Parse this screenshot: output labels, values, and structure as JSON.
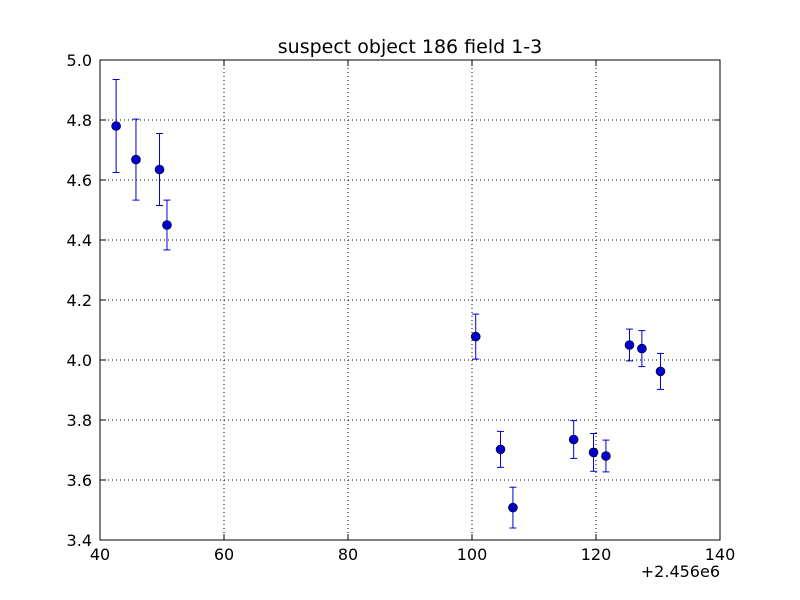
{
  "chart_data": {
    "type": "scatter",
    "title": "suspect object 186 field 1-3",
    "xlabel": "",
    "ylabel": "",
    "x_offset_label": "+2.456e6",
    "xlim": [
      40,
      140
    ],
    "ylim": [
      5.0,
      3.4
    ],
    "y_inverted": true,
    "grid": true,
    "x_ticks": [
      40,
      60,
      80,
      100,
      120,
      140
    ],
    "x_tick_labels": [
      "40",
      "60",
      "80",
      "100",
      "120",
      "140"
    ],
    "y_ticks": [
      3.4,
      3.6,
      3.8,
      4.0,
      4.2,
      4.4,
      4.6,
      4.8,
      5.0
    ],
    "y_tick_labels": [
      "3.4",
      "3.6",
      "3.8",
      "4.0",
      "4.2",
      "4.4",
      "4.6",
      "4.8",
      "5.0"
    ],
    "series": [
      {
        "color": "#0000cc",
        "marker": "circle",
        "error_bars": true,
        "points": [
          {
            "x": 42.6,
            "y": 4.78,
            "err": 0.155
          },
          {
            "x": 45.8,
            "y": 4.668,
            "err": 0.135
          },
          {
            "x": 49.6,
            "y": 4.635,
            "err": 0.12
          },
          {
            "x": 50.8,
            "y": 4.45,
            "err": 0.083
          },
          {
            "x": 100.6,
            "y": 4.078,
            "err": 0.075
          },
          {
            "x": 104.6,
            "y": 3.702,
            "err": 0.06
          },
          {
            "x": 106.6,
            "y": 3.508,
            "err": 0.068
          },
          {
            "x": 116.4,
            "y": 3.735,
            "err": 0.063
          },
          {
            "x": 119.6,
            "y": 3.692,
            "err": 0.063
          },
          {
            "x": 121.6,
            "y": 3.68,
            "err": 0.053
          },
          {
            "x": 125.4,
            "y": 4.05,
            "err": 0.053
          },
          {
            "x": 127.4,
            "y": 4.038,
            "err": 0.06
          },
          {
            "x": 130.4,
            "y": 3.962,
            "err": 0.06
          }
        ]
      }
    ]
  }
}
